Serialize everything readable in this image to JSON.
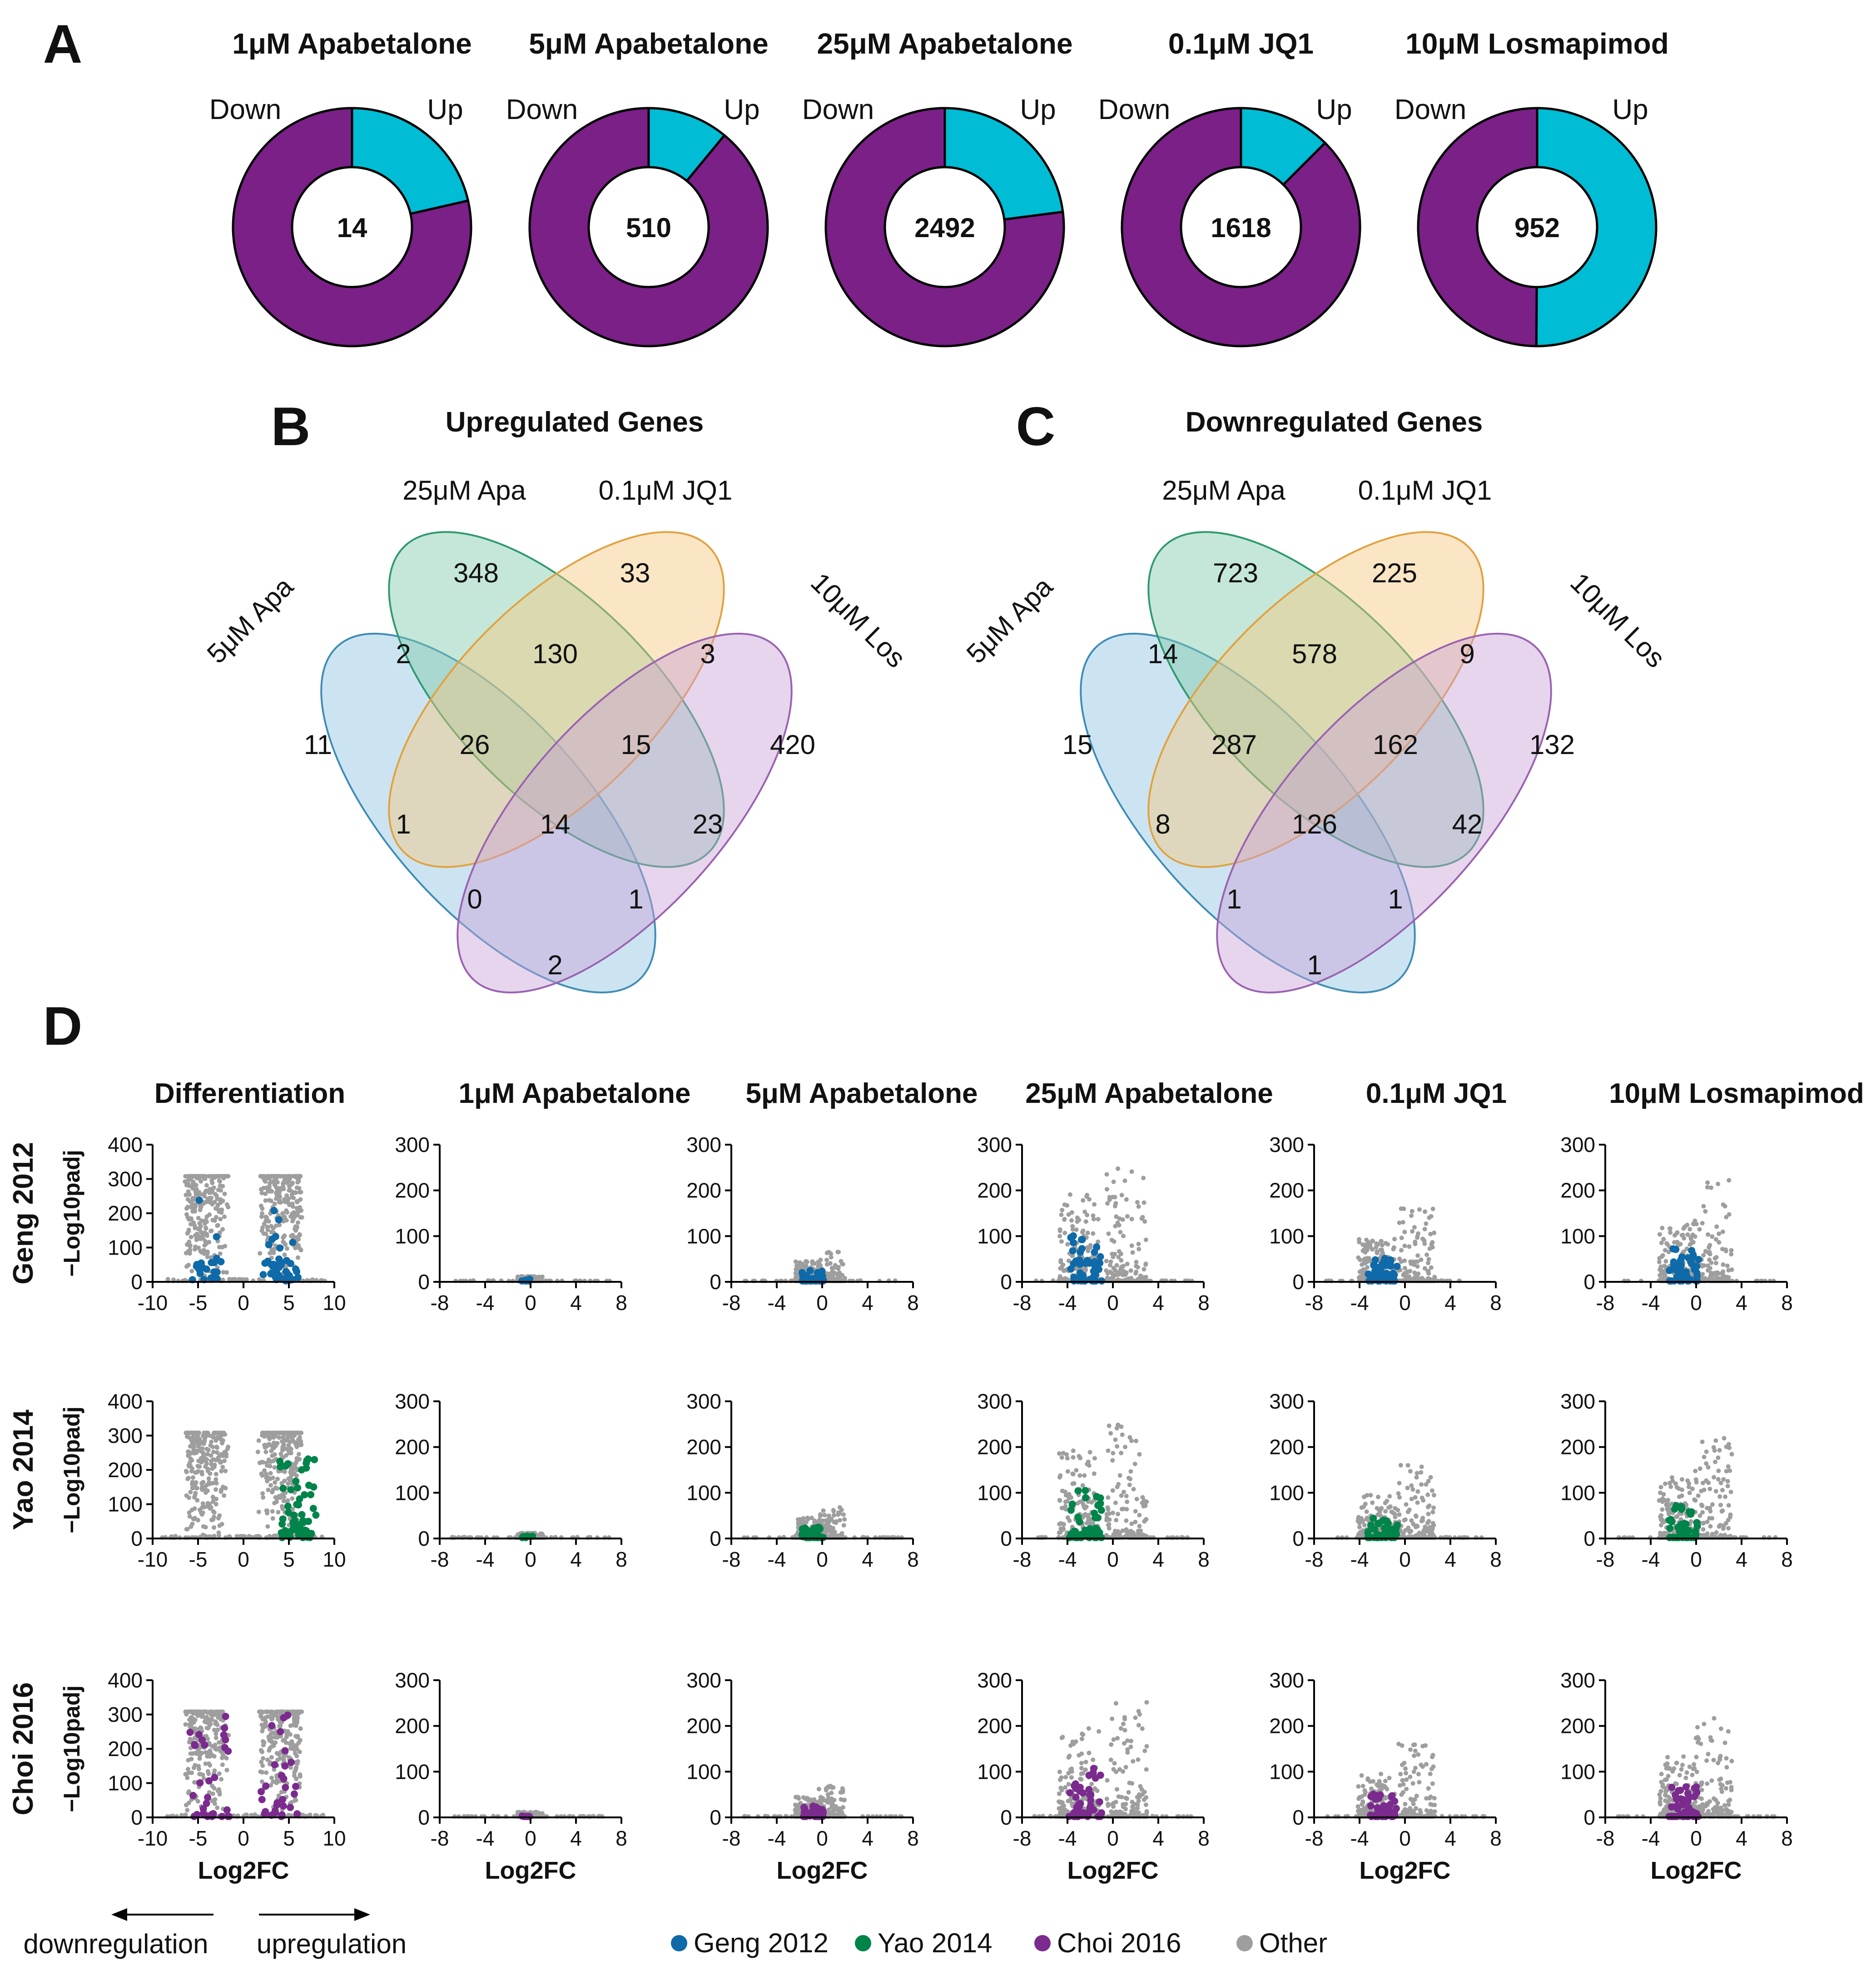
{
  "panel_labels": {
    "A": "A",
    "B": "B",
    "C": "C",
    "D": "D"
  },
  "colors": {
    "up": "#00BCD4",
    "down": "#7A2087",
    "geng": "#0E6AA8",
    "yao": "#00844A",
    "choi": "#7B2A8E",
    "other": "#9E9E9E"
  },
  "chart_data": [
    {
      "type": "pie",
      "panel": "A",
      "title": "1μM Apabetalone",
      "center_value": "14",
      "labels": [
        "Down",
        "Up"
      ],
      "values": [
        11,
        3
      ]
    },
    {
      "type": "pie",
      "panel": "A",
      "title": "5μM Apabetalone",
      "center_value": "510",
      "labels": [
        "Down",
        "Up"
      ],
      "values": [
        454,
        56
      ]
    },
    {
      "type": "pie",
      "panel": "A",
      "title": "25μM Apabetalone",
      "center_value": "2492",
      "labels": [
        "Down",
        "Up"
      ],
      "values": [
        1920,
        572
      ]
    },
    {
      "type": "pie",
      "panel": "A",
      "title": "0.1μM JQ1",
      "center_value": "1618",
      "labels": [
        "Down",
        "Up"
      ],
      "values": [
        1416,
        202
      ]
    },
    {
      "type": "pie",
      "panel": "A",
      "title": "10μM Losmapimod",
      "center_value": "952",
      "labels": [
        "Down",
        "Up"
      ],
      "values": [
        475,
        477
      ]
    },
    {
      "type": "venn",
      "panel": "B",
      "title": "Upregulated Genes",
      "sets": [
        "5μM Apa",
        "25μM Apa",
        "0.1μM JQ1",
        "10μM Los"
      ],
      "regions": {
        "r_a": "11",
        "r_b": "348",
        "r_c": "33",
        "r_d": "420",
        "r_ab": "2",
        "r_bc": "130",
        "r_cd": "3",
        "r_abc": "26",
        "r_bcd": "15",
        "r_ac": "1",
        "r_abcd": "14",
        "r_bd": "23",
        "r_acd": "0",
        "r_abd": "1",
        "r_ad": "2"
      }
    },
    {
      "type": "venn",
      "panel": "C",
      "title": "Downregulated Genes",
      "sets": [
        "5μM Apa",
        "25μM Apa",
        "0.1μM JQ1",
        "10μM Los"
      ],
      "regions": {
        "r_a": "15",
        "r_b": "723",
        "r_c": "225",
        "r_d": "132",
        "r_ab": "14",
        "r_bc": "578",
        "r_cd": "9",
        "r_abc": "287",
        "r_bcd": "162",
        "r_ac": "8",
        "r_abcd": "126",
        "r_bd": "42",
        "r_acd": "1",
        "r_abd": "1",
        "r_ad": "1"
      }
    },
    {
      "type": "scatter",
      "panel": "D",
      "subtype": "volcano-grid",
      "columns": [
        "Differentiation",
        "1μM Apabetalone",
        "5μM Apabetalone",
        "25μM Apabetalone",
        "0.1μM JQ1",
        "10μM Losmapimod"
      ],
      "rows": [
        "Geng 2012",
        "Yao 2014",
        "Choi 2016"
      ],
      "xlabel": "Log2FC",
      "ylabel": "−Log10padj",
      "diff_axis": {
        "xlim": [
          -10,
          10
        ],
        "ylim": [
          0,
          400
        ],
        "xticks": [
          "-10",
          "-5",
          "0",
          "5",
          "10"
        ],
        "yticks": [
          "0",
          "100",
          "200",
          "300",
          "400"
        ]
      },
      "treat_axis": {
        "xlim": [
          -8,
          8
        ],
        "ylim": [
          0,
          300
        ],
        "xticks": [
          "-8",
          "-4",
          "0",
          "4",
          "8"
        ],
        "yticks": [
          "0",
          "100",
          "200",
          "300"
        ]
      },
      "cap_value": 308,
      "legend": [
        "Geng 2012",
        "Yao 2014",
        "Choi 2016",
        "Other"
      ],
      "direction_labels": {
        "down": "downregulation",
        "up": "upregulation"
      },
      "spread": {
        "1μM Apabetalone": {
          "left_x": -0.5,
          "right_x": 0.4,
          "left_peak": 12,
          "right_peak": 12,
          "width": 0.9
        },
        "5μM Apabetalone": {
          "left_x": -1.2,
          "right_x": 0.8,
          "left_peak": 45,
          "right_peak": 70,
          "width": 1.6
        },
        "25μM Apabetalone": {
          "left_x": -3.0,
          "right_x": 1.2,
          "left_peak": 195,
          "right_peak": 255,
          "width": 2.4
        },
        "0.1μM JQ1": {
          "left_x": -2.5,
          "right_x": 1.0,
          "left_peak": 95,
          "right_peak": 165,
          "width": 2.2
        },
        "10μM Losmapimod": {
          "left_x": -1.6,
          "right_x": 1.5,
          "left_peak": 135,
          "right_peak": 225,
          "width": 2.2
        }
      }
    }
  ]
}
